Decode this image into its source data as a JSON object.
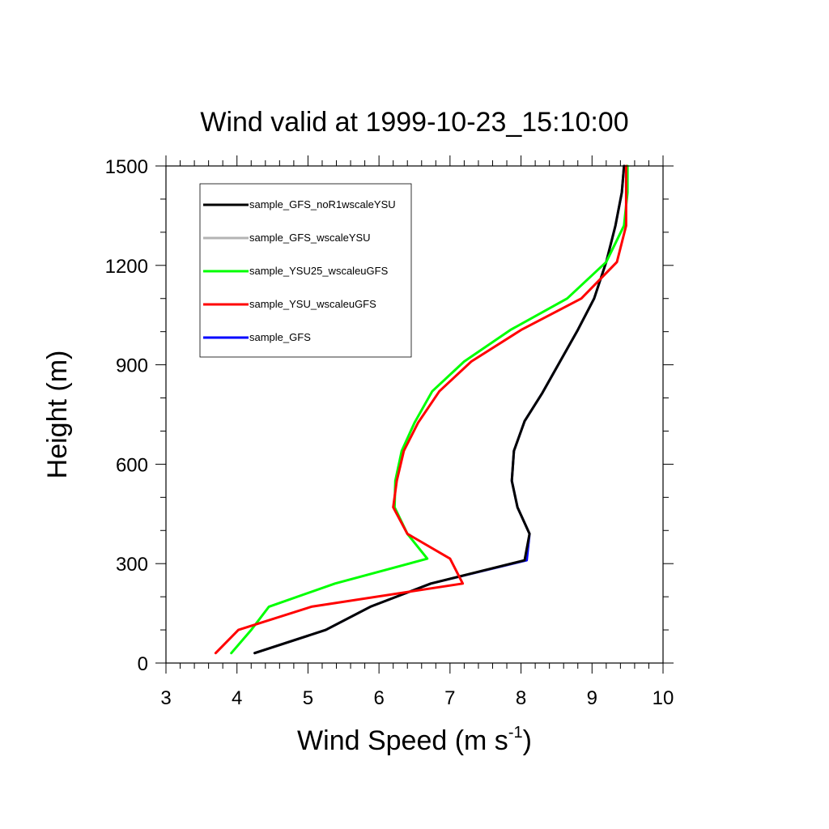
{
  "chart_data": {
    "type": "line",
    "title": "Wind valid at 1999-10-23_15:10:00",
    "xlabel": "Wind Speed (m s",
    "xlabel_superscript": "-1",
    "xlabel_close": ")",
    "ylabel": "Height (m)",
    "xlim": [
      3,
      10
    ],
    "ylim": [
      0,
      1500
    ],
    "xticks": [
      3,
      4,
      5,
      6,
      7,
      8,
      9,
      10
    ],
    "yticks": [
      0,
      300,
      600,
      900,
      1200,
      1500
    ],
    "x_minor_step": 0.2,
    "y_minor_step": 100,
    "grid": false,
    "legend_position": "top-left",
    "series": [
      {
        "name": "sample_GFS_noR1wscaleYSU",
        "color": "#000000",
        "points": [
          [
            4.25,
            30
          ],
          [
            5.25,
            100
          ],
          [
            5.88,
            170
          ],
          [
            6.73,
            240
          ],
          [
            8.05,
            310
          ],
          [
            8.12,
            390
          ],
          [
            7.95,
            470
          ],
          [
            7.87,
            550
          ],
          [
            7.9,
            640
          ],
          [
            8.05,
            730
          ],
          [
            8.3,
            815
          ],
          [
            8.55,
            910
          ],
          [
            8.8,
            1005
          ],
          [
            9.03,
            1100
          ],
          [
            9.2,
            1210
          ],
          [
            9.33,
            1320
          ],
          [
            9.42,
            1420
          ],
          [
            9.45,
            1500
          ]
        ]
      },
      {
        "name": "sample_GFS_wscaleYSU",
        "color": "#b4b4b4",
        "points": [
          [
            4.25,
            30
          ],
          [
            5.25,
            100
          ],
          [
            5.88,
            170
          ],
          [
            6.73,
            240
          ],
          [
            8.05,
            310
          ],
          [
            8.12,
            390
          ],
          [
            7.95,
            470
          ],
          [
            7.87,
            550
          ],
          [
            7.9,
            640
          ],
          [
            8.05,
            730
          ],
          [
            8.3,
            815
          ],
          [
            8.55,
            910
          ],
          [
            8.8,
            1005
          ],
          [
            9.03,
            1100
          ],
          [
            9.2,
            1210
          ],
          [
            9.33,
            1320
          ],
          [
            9.42,
            1420
          ],
          [
            9.45,
            1500
          ]
        ]
      },
      {
        "name": "sample_YSU25_wscaleuGFS",
        "color": "#00ff00",
        "points": [
          [
            3.92,
            30
          ],
          [
            4.2,
            100
          ],
          [
            4.45,
            170
          ],
          [
            5.38,
            240
          ],
          [
            6.68,
            315
          ],
          [
            6.4,
            390
          ],
          [
            6.22,
            470
          ],
          [
            6.23,
            550
          ],
          [
            6.32,
            640
          ],
          [
            6.5,
            725
          ],
          [
            6.75,
            820
          ],
          [
            7.2,
            910
          ],
          [
            7.85,
            1005
          ],
          [
            8.65,
            1100
          ],
          [
            9.2,
            1210
          ],
          [
            9.45,
            1320
          ],
          [
            9.5,
            1420
          ],
          [
            9.5,
            1500
          ]
        ]
      },
      {
        "name": "sample_YSU_wscaleuGFS",
        "color": "#ff0000",
        "points": [
          [
            3.7,
            30
          ],
          [
            4.02,
            100
          ],
          [
            5.05,
            170
          ],
          [
            7.18,
            240
          ],
          [
            7.0,
            315
          ],
          [
            6.4,
            390
          ],
          [
            6.2,
            470
          ],
          [
            6.25,
            550
          ],
          [
            6.35,
            640
          ],
          [
            6.55,
            725
          ],
          [
            6.85,
            820
          ],
          [
            7.3,
            910
          ],
          [
            8.0,
            1005
          ],
          [
            8.85,
            1100
          ],
          [
            9.35,
            1210
          ],
          [
            9.48,
            1320
          ],
          [
            9.48,
            1420
          ],
          [
            9.48,
            1500
          ]
        ]
      },
      {
        "name": "sample_GFS",
        "color": "#0000ff",
        "points": [
          [
            4.25,
            30
          ],
          [
            5.25,
            100
          ],
          [
            5.88,
            170
          ],
          [
            6.73,
            240
          ],
          [
            8.08,
            310
          ],
          [
            8.12,
            390
          ],
          [
            7.95,
            470
          ],
          [
            7.87,
            550
          ],
          [
            7.9,
            640
          ],
          [
            8.05,
            730
          ],
          [
            8.3,
            815
          ],
          [
            8.55,
            910
          ],
          [
            8.8,
            1005
          ],
          [
            9.03,
            1100
          ],
          [
            9.2,
            1210
          ],
          [
            9.33,
            1320
          ],
          [
            9.42,
            1420
          ],
          [
            9.45,
            1500
          ]
        ]
      }
    ],
    "draw_order": [
      4,
      1,
      0,
      2,
      3
    ]
  }
}
